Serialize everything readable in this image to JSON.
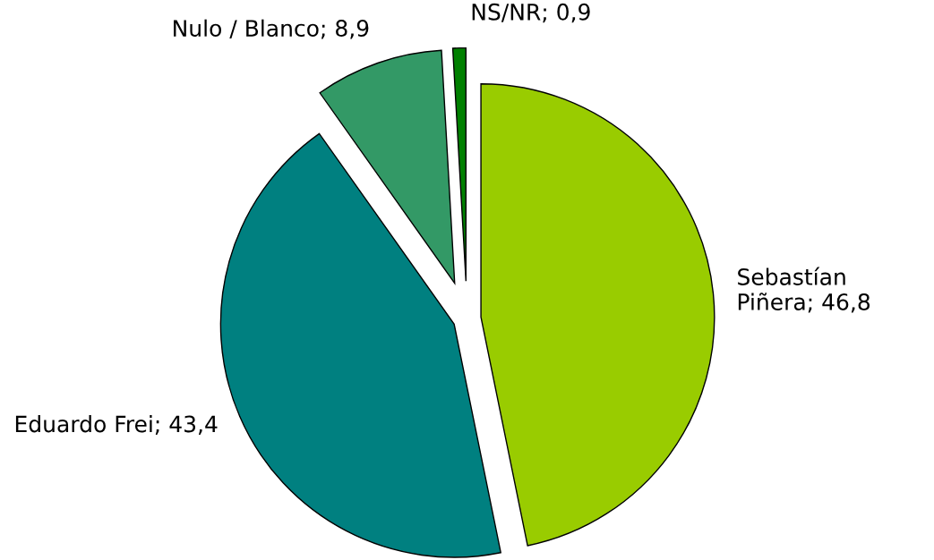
{
  "chart_data": {
    "type": "pie",
    "categories": [
      "Sebastían\nPiñera",
      "Eduardo Frei",
      "Nulo / Blanco",
      "NS/NR"
    ],
    "values": [
      46.8,
      43.4,
      8.9,
      0.9
    ],
    "value_labels": [
      "46,8",
      "43,4",
      "8,9",
      "0,9"
    ],
    "colors": [
      "#99cc00",
      "#008080",
      "#339966",
      "#008000"
    ],
    "legend": false
  }
}
